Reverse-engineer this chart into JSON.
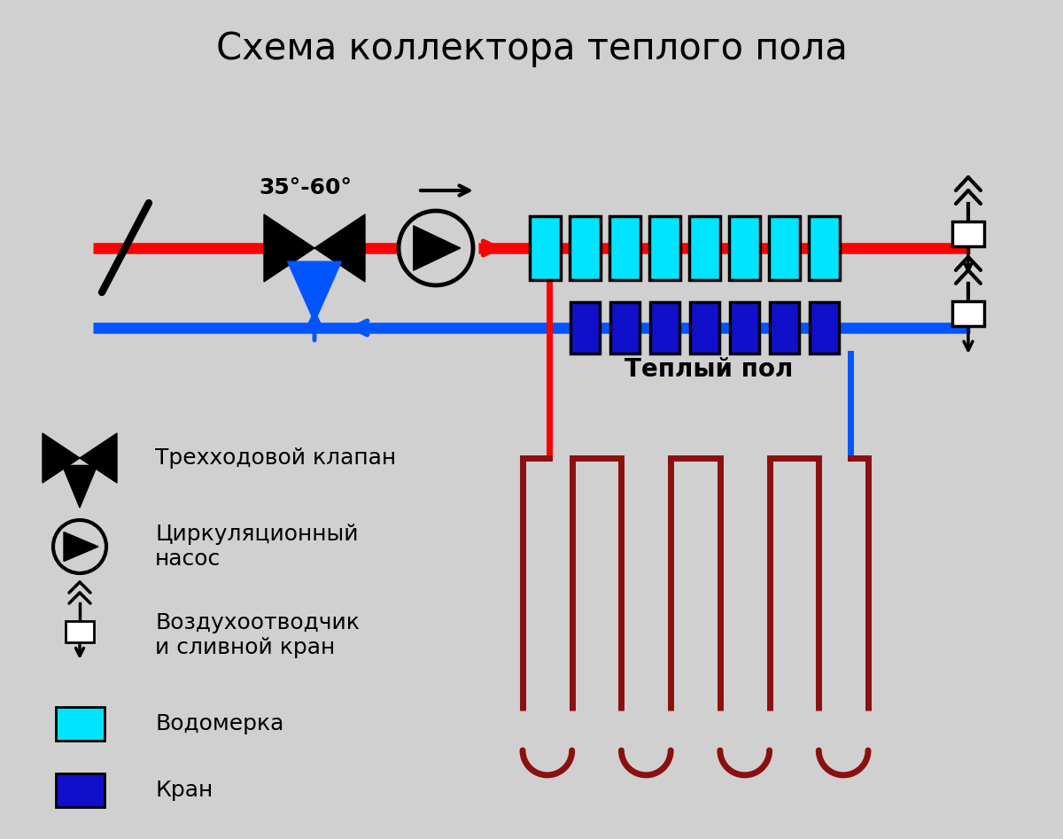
{
  "title": "Схема коллектора теплого пола",
  "bg_color": "#d0d0d0",
  "red_color": "#ff0000",
  "blue_color": "#0055ff",
  "dark_red": "#8b1010",
  "cyan_color": "#00e5ff",
  "dark_blue": "#1010cc",
  "black": "#000000",
  "white": "#ffffff",
  "pipe_lw": 9,
  "label_temp": "35°-60°",
  "label_warm_floor": "Теплый пол",
  "legend_items": [
    "Трехходовой клапан",
    "Циркуляционный\nнасос",
    "Воздухоотводчик\nи сливной кран",
    "Водомерка",
    "Кран"
  ]
}
